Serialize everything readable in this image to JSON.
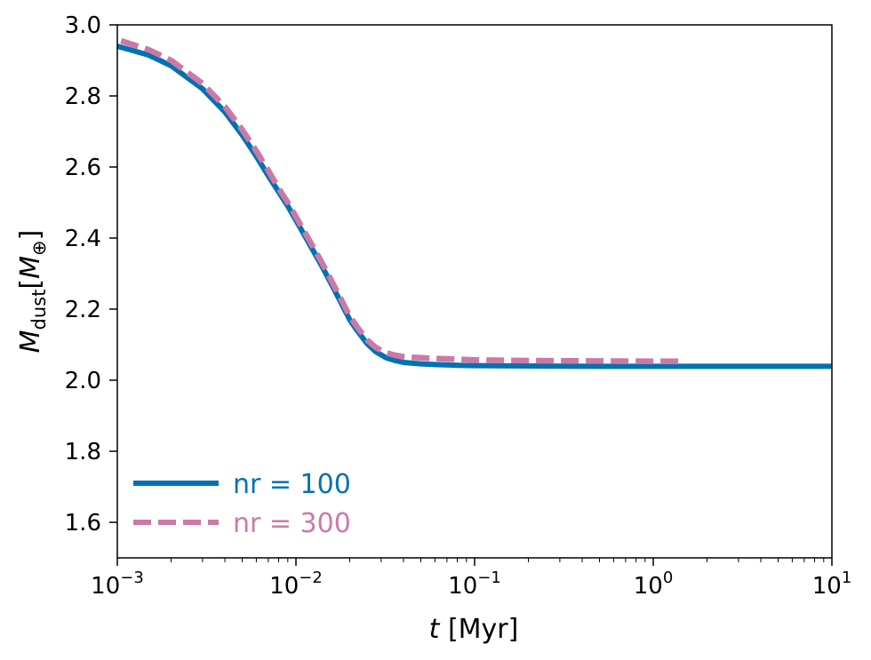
{
  "chart_data": {
    "type": "line",
    "xscale": "log",
    "xlim": [
      0.001,
      10
    ],
    "ylim": [
      1.5,
      3.0
    ],
    "xlabel": {
      "italic": "t",
      "rest": " [Myr]"
    },
    "ylabel": {
      "symbol": "M",
      "subscript": "dust",
      "unit_open": "[",
      "unit_symbol": "M",
      "unit_subscript": "⊕",
      "unit_close": "]"
    },
    "x_ticks": [
      {
        "value": 0.001,
        "base": "10",
        "exp": "−3"
      },
      {
        "value": 0.01,
        "base": "10",
        "exp": "−2"
      },
      {
        "value": 0.1,
        "base": "10",
        "exp": "−1"
      },
      {
        "value": 1,
        "base": "10",
        "exp": "0"
      },
      {
        "value": 10,
        "base": "10",
        "exp": "1"
      }
    ],
    "y_ticks": [
      {
        "value": 1.6,
        "label": "1.6"
      },
      {
        "value": 1.8,
        "label": "1.8"
      },
      {
        "value": 2.0,
        "label": "2.0"
      },
      {
        "value": 2.2,
        "label": "2.2"
      },
      {
        "value": 2.4,
        "label": "2.4"
      },
      {
        "value": 2.6,
        "label": "2.6"
      },
      {
        "value": 2.8,
        "label": "2.8"
      },
      {
        "value": 3.0,
        "label": "3.0"
      }
    ],
    "legend_position": "lower-left",
    "grid": false,
    "series": [
      {
        "name": "nr = 100",
        "color": "#0072b2",
        "style": "solid",
        "x": [
          0.001,
          0.0015,
          0.002,
          0.003,
          0.004,
          0.005,
          0.006,
          0.007,
          0.008,
          0.009,
          0.01,
          0.012,
          0.014,
          0.016,
          0.018,
          0.02,
          0.022,
          0.025,
          0.028,
          0.032,
          0.036,
          0.04,
          0.05,
          0.06,
          0.08,
          0.1,
          0.2,
          0.5,
          1,
          2,
          5,
          10
        ],
        "y": [
          2.94,
          2.915,
          2.885,
          2.82,
          2.755,
          2.69,
          2.63,
          2.575,
          2.53,
          2.49,
          2.45,
          2.38,
          2.32,
          2.265,
          2.215,
          2.17,
          2.14,
          2.103,
          2.08,
          2.063,
          2.055,
          2.05,
          2.046,
          2.044,
          2.042,
          2.041,
          2.04,
          2.039,
          2.039,
          2.039,
          2.039,
          2.039
        ]
      },
      {
        "name": "nr = 300",
        "color": "#cc79a7",
        "style": "dashed",
        "x": [
          0.00105,
          0.0015,
          0.002,
          0.003,
          0.004,
          0.005,
          0.006,
          0.007,
          0.008,
          0.009,
          0.01,
          0.012,
          0.014,
          0.016,
          0.018,
          0.02,
          0.022,
          0.025,
          0.028,
          0.032,
          0.036,
          0.04,
          0.05,
          0.06,
          0.08,
          0.1,
          0.2,
          0.5,
          1,
          1.4
        ],
        "y": [
          2.955,
          2.93,
          2.9,
          2.835,
          2.77,
          2.705,
          2.645,
          2.59,
          2.54,
          2.5,
          2.46,
          2.39,
          2.33,
          2.275,
          2.225,
          2.18,
          2.15,
          2.113,
          2.092,
          2.077,
          2.07,
          2.066,
          2.063,
          2.061,
          2.059,
          2.057,
          2.055,
          2.054,
          2.053,
          2.053
        ]
      }
    ]
  }
}
